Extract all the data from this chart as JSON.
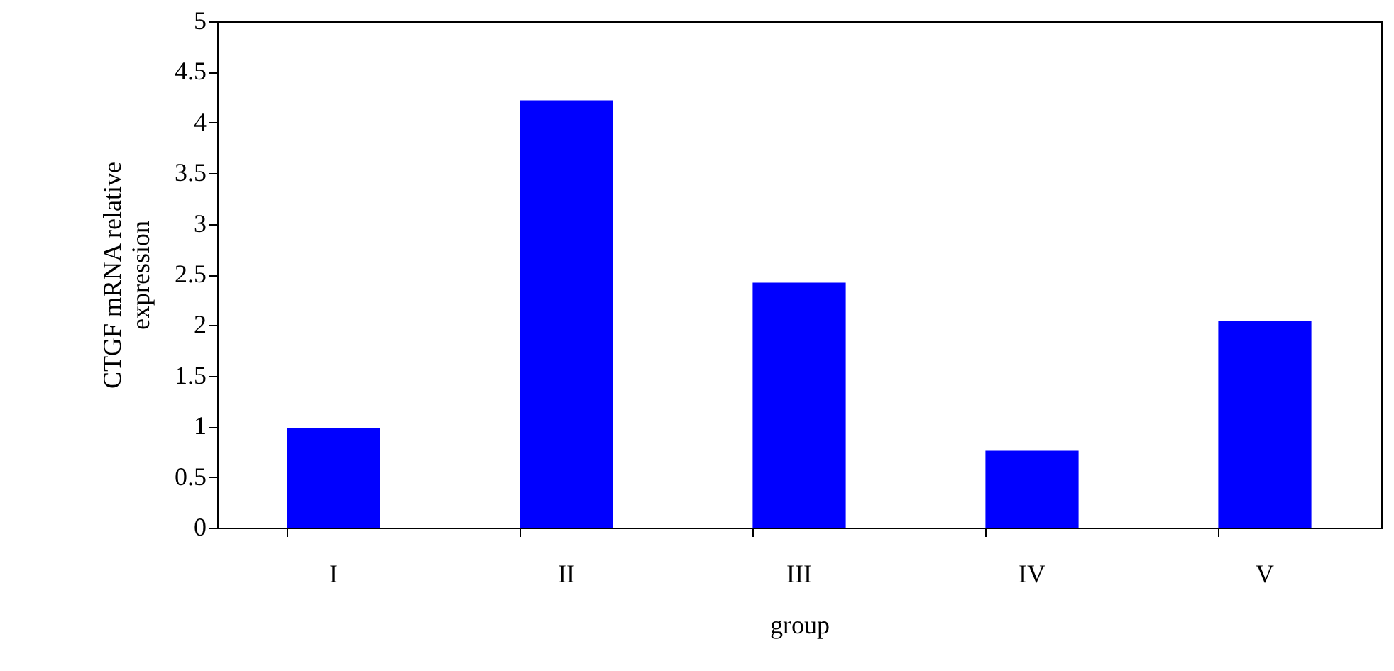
{
  "chart_data": {
    "type": "bar",
    "xlabel": "group",
    "ylabel": "CTGF mRNA relative expression",
    "categories": [
      "I",
      "II",
      "III",
      "IV",
      "V"
    ],
    "values": [
      0.98,
      4.22,
      2.42,
      0.76,
      2.04
    ],
    "color": "#0000ff",
    "ylim": [
      0,
      5
    ],
    "yticks": [
      0,
      0.5,
      1,
      1.5,
      2,
      2.5,
      3,
      3.5,
      4,
      4.5,
      5
    ],
    "grid": false
  }
}
